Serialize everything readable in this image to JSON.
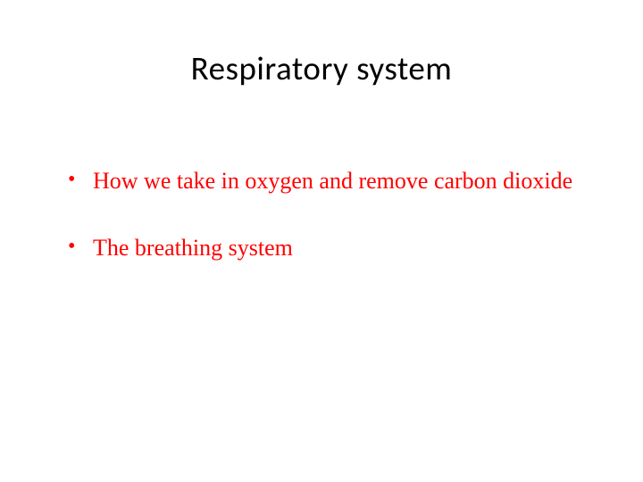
{
  "slide": {
    "title": "Respiratory system",
    "title_color": "#000000",
    "title_fontsize": 37,
    "background_color": "#ffffff",
    "bullets": [
      {
        "text": "How we take in oxygen and remove carbon dioxide",
        "color": "#ff0000",
        "fontsize": 26
      },
      {
        "text": "The breathing system",
        "color": "#ff0000",
        "fontsize": 26
      }
    ]
  }
}
